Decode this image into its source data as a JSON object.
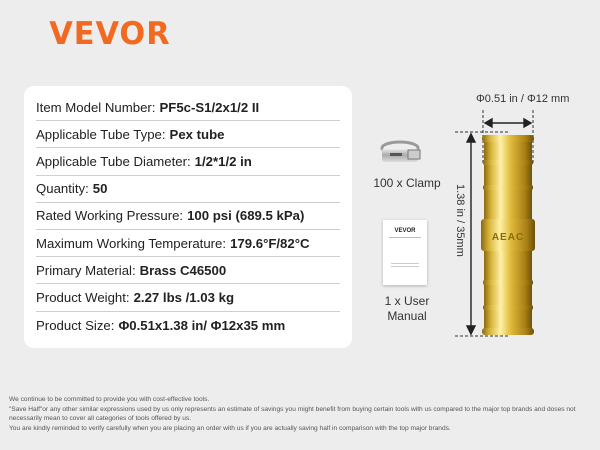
{
  "brand": {
    "logo": "VEVOR",
    "color": "#f26a21"
  },
  "specs": [
    {
      "label": "Item Model Number:",
      "value": "PF5c-S1/2x1/2 II"
    },
    {
      "label": "Applicable Tube Type:",
      "value": "Pex tube"
    },
    {
      "label": "Applicable Tube Diameter:",
      "value": "1/2*1/2 in"
    },
    {
      "label": "Quantity:",
      "value": "50"
    },
    {
      "label": "Rated Working Pressure:",
      "value": "100 psi (689.5 kPa)"
    },
    {
      "label": "Maximum Working Temperature:",
      "value": "179.6°F/82°C"
    },
    {
      "label": "Primary Material:",
      "value": "Brass C46500"
    },
    {
      "label": "Product Weight:",
      "value": "2.27 lbs /1.03 kg"
    },
    {
      "label": "Product Size:",
      "value": "Φ0.51x1.38 in/ Φ12x35 mm"
    }
  ],
  "accessories": {
    "clamp": "100 x Clamp",
    "manual_line1": "1 x User",
    "manual_line2": "Manual",
    "manual_logo": "VEVOR"
  },
  "dimensions": {
    "diameter": "Φ0.51 in / Φ12 mm",
    "length": "1.38 in / 35mm"
  },
  "footer": [
    "We continue to be committed to provide you with cost-effective tools.",
    "\"Save Half\"or any other similar expressions used by us only represents an estimate of savings you might benefit from buying certain tools with us compared to the major top brands and doses not necessarily mean to cover all categories of tools offered by us.",
    "You are kindly reminded to verify carefully when you are placing an order with us if you are actually saving half in comparison with the top major brands."
  ]
}
